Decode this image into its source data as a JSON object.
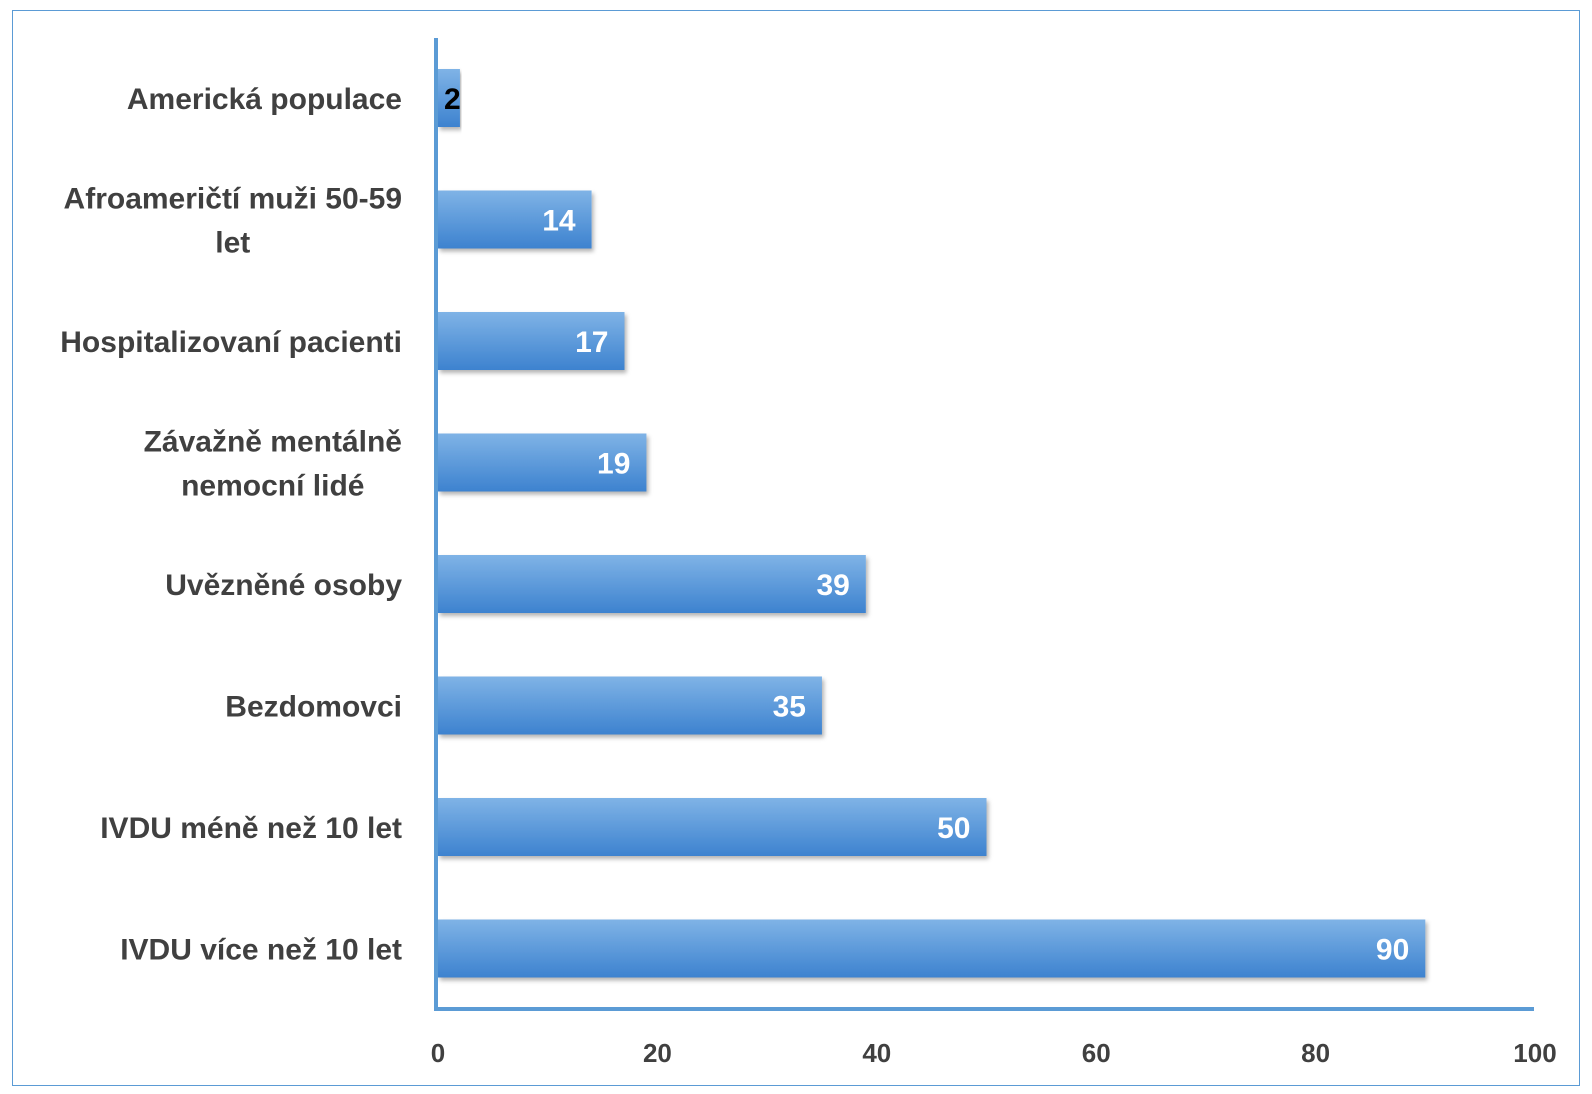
{
  "chart_data": {
    "type": "bar",
    "orientation": "horizontal",
    "title": "",
    "xlabel": "",
    "ylabel": "",
    "categories": [
      "Americká populace",
      "Afroameričtí muži 50-59 let",
      "Hospitalizovaní pacienti",
      "Závažně mentálně nemocní lidé",
      "Uvězněné osoby",
      "Bezdomovci",
      "IVDU méně než 10 let",
      "IVDU více než 10 let"
    ],
    "category_lines": [
      [
        "Americká populace"
      ],
      [
        "Afroameričtí muži 50-59",
        "let"
      ],
      [
        "Hospitalizovaní pacienti"
      ],
      [
        "Závažně mentálně",
        "nemocní lidé"
      ],
      [
        "Uvězněné osoby"
      ],
      [
        "Bezdomovci"
      ],
      [
        "IVDU méně než 10 let"
      ],
      [
        "IVDU více než 10 let"
      ]
    ],
    "values": [
      2,
      14,
      17,
      19,
      39,
      35,
      50,
      90
    ],
    "xlim": [
      0,
      100
    ],
    "x_ticks": [
      0,
      20,
      40,
      60,
      80,
      100
    ],
    "grid": false,
    "legend": "none",
    "colors": {
      "bar_light": "#7fb3e6",
      "bar_dark": "#3d82cf",
      "axis": "#5b9bd5",
      "label_text": "#404040",
      "data_label_inside": "#ffffff",
      "data_label_outside": "#000000"
    }
  }
}
